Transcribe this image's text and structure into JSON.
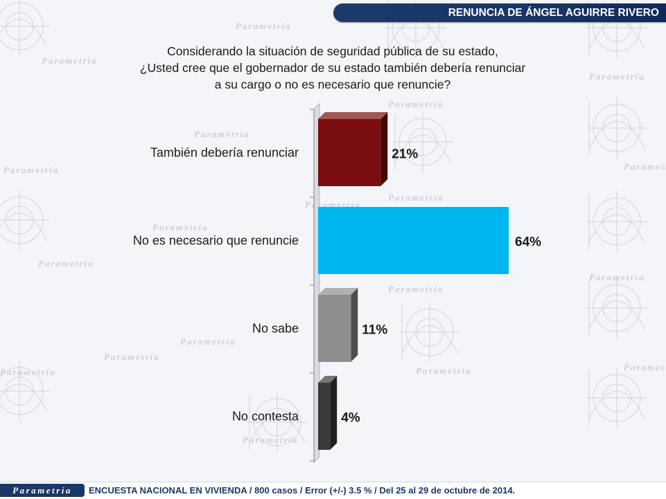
{
  "header": {
    "title": "RENUNCIA DE ÁNGEL AGUIRRE RIVERO"
  },
  "question": {
    "lines": [
      "Considerando la situación de seguridad pública de su estado,",
      "¿Usted cree que el gobernador de su estado también debería renunciar",
      "a su cargo o no es necesario que renuncie?"
    ]
  },
  "chart_data": {
    "type": "bar",
    "orientation": "horizontal",
    "categories": [
      "También debería renunciar",
      "No es necesario que renuncie",
      "No sabe",
      "No contesta"
    ],
    "values": [
      21,
      64,
      11,
      4
    ],
    "value_labels": [
      "21%",
      "64%",
      "11%",
      "4%"
    ],
    "colors": [
      "#7a0d0d",
      "#00b6f0",
      "#8e8e8e",
      "#3b3b3b"
    ],
    "xlim": [
      0,
      100
    ],
    "title": "",
    "xlabel": "",
    "ylabel": "",
    "grid": false,
    "legend": "none"
  },
  "watermark": {
    "brand": "Parametría"
  },
  "footer": {
    "logo": "Parametría",
    "note": "ENCUESTA NACIONAL EN VIVIENDA / 800 casos / Error (+/-) 3.5 % / Del 25 al 29 de octubre de 2014."
  },
  "colors": {
    "banner": "#1c3a6b",
    "footer_text": "#1b3768"
  }
}
